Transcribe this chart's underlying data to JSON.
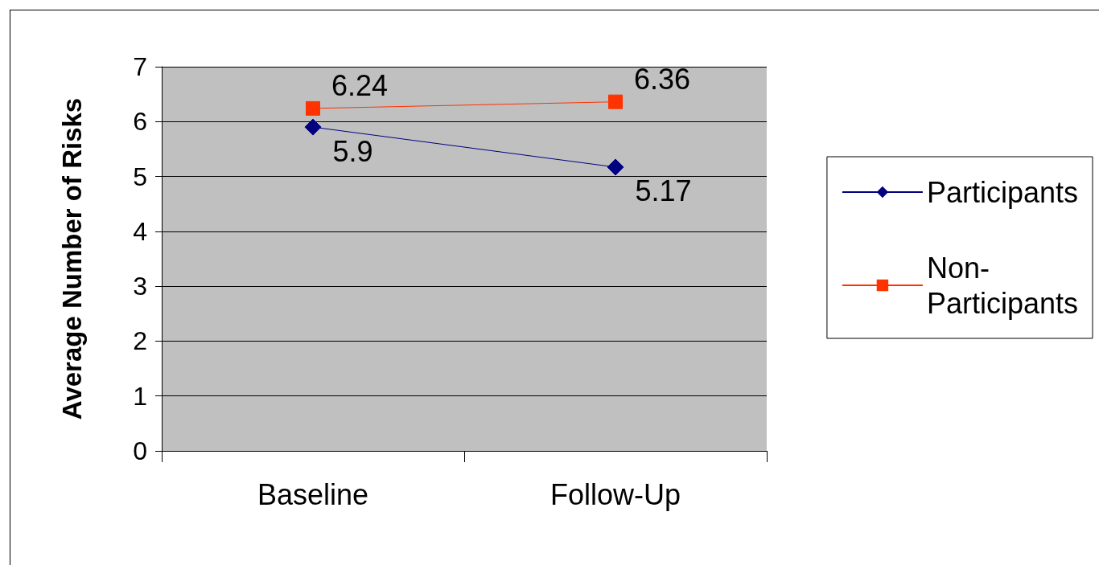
{
  "chart_data": {
    "type": "line",
    "ylabel": "Average Number of Risks",
    "categories": [
      "Baseline",
      "Follow-Up"
    ],
    "series": [
      {
        "name": "Participants",
        "color": "#000080",
        "marker": "diamond",
        "values": [
          5.9,
          5.17
        ]
      },
      {
        "name": "Non-Participants",
        "color": "#ff3300",
        "marker": "square",
        "values": [
          6.24,
          6.36
        ]
      }
    ],
    "ylim": [
      0,
      7
    ],
    "yticks": [
      0,
      1,
      2,
      3,
      4,
      5,
      6,
      7
    ],
    "grid": "y",
    "legend": "right",
    "data_labels": true
  }
}
